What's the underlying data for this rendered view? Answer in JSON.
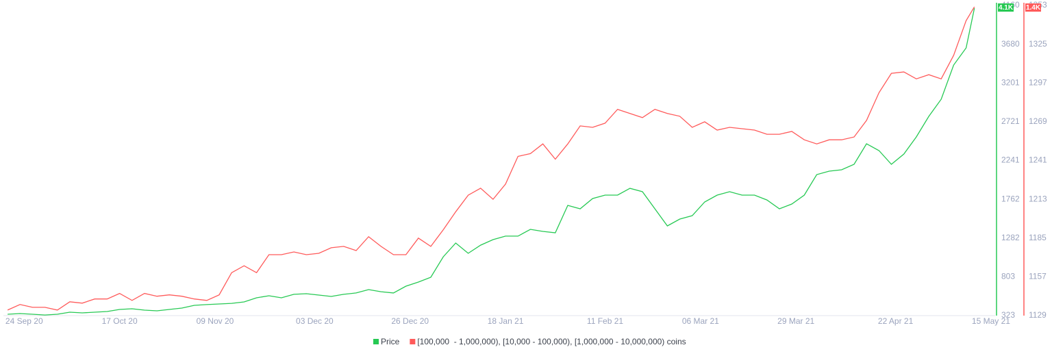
{
  "chart_data": {
    "type": "line",
    "x": [
      "2020-09-20",
      "2020-09-23",
      "2020-09-26",
      "2020-09-29",
      "2020-10-02",
      "2020-10-05",
      "2020-10-08",
      "2020-10-11",
      "2020-10-14",
      "2020-10-17",
      "2020-10-20",
      "2020-10-23",
      "2020-10-26",
      "2020-10-29",
      "2020-11-01",
      "2020-11-04",
      "2020-11-07",
      "2020-11-10",
      "2020-11-13",
      "2020-11-16",
      "2020-11-19",
      "2020-11-22",
      "2020-11-25",
      "2020-11-28",
      "2020-12-01",
      "2020-12-04",
      "2020-12-07",
      "2020-12-10",
      "2020-12-13",
      "2020-12-16",
      "2020-12-19",
      "2020-12-22",
      "2020-12-25",
      "2020-12-28",
      "2020-12-31",
      "2021-01-03",
      "2021-01-06",
      "2021-01-09",
      "2021-01-12",
      "2021-01-15",
      "2021-01-18",
      "2021-01-21",
      "2021-01-24",
      "2021-01-27",
      "2021-01-30",
      "2021-02-02",
      "2021-02-05",
      "2021-02-08",
      "2021-02-11",
      "2021-02-14",
      "2021-02-17",
      "2021-02-20",
      "2021-02-23",
      "2021-02-26",
      "2021-03-01",
      "2021-03-04",
      "2021-03-07",
      "2021-03-10",
      "2021-03-13",
      "2021-03-16",
      "2021-03-19",
      "2021-03-22",
      "2021-03-25",
      "2021-03-28",
      "2021-03-31",
      "2021-04-03",
      "2021-04-06",
      "2021-04-09",
      "2021-04-12",
      "2021-04-15",
      "2021-04-18",
      "2021-04-21",
      "2021-04-24",
      "2021-04-27",
      "2021-04-30",
      "2021-05-03",
      "2021-05-06",
      "2021-05-09",
      "2021-05-11"
    ],
    "xlim": [
      "2020-09-19",
      "2021-05-16"
    ],
    "xticks": [
      {
        "value": "2020-09-24",
        "label": "24 Sep 20"
      },
      {
        "value": "2020-10-17",
        "label": "17 Oct 20"
      },
      {
        "value": "2020-11-09",
        "label": "09 Nov 20"
      },
      {
        "value": "2020-12-03",
        "label": "03 Dec 20"
      },
      {
        "value": "2020-12-26",
        "label": "26 Dec 20"
      },
      {
        "value": "2021-01-18",
        "label": "18 Jan 21"
      },
      {
        "value": "2021-02-11",
        "label": "11 Feb 21"
      },
      {
        "value": "2021-03-06",
        "label": "06 Mar 21"
      },
      {
        "value": "2021-03-29",
        "label": "29 Mar 21"
      },
      {
        "value": "2021-04-22",
        "label": "22 Apr 21"
      },
      {
        "value": "2021-05-15",
        "label": "15 May 21"
      }
    ],
    "ylim": [
      323,
      4160
    ],
    "yticks": [
      323,
      803,
      1282,
      1762,
      2241,
      2721,
      3201,
      3680,
      4160
    ],
    "y2lim": [
      1129,
      1353
    ],
    "y2ticks": [
      1129,
      1157,
      1185,
      1213,
      1241,
      1269,
      1297,
      1325,
      1353
    ],
    "grid": false,
    "series": [
      {
        "name": "Price",
        "color": "#26c953",
        "badge": "4.1K",
        "values": [
          340,
          348,
          340,
          331,
          340,
          365,
          357,
          365,
          374,
          399,
          408,
          391,
          382,
          399,
          416,
          450,
          459,
          467,
          475,
          492,
          543,
          569,
          543,
          586,
          594,
          577,
          560,
          586,
          603,
          645,
          619,
          603,
          687,
          738,
          797,
          1051,
          1221,
          1094,
          1195,
          1263,
          1306,
          1306,
          1390,
          1365,
          1348,
          1687,
          1644,
          1771,
          1814,
          1814,
          1898,
          1856,
          1644,
          1433,
          1517,
          1560,
          1729,
          1814,
          1856,
          1814,
          1814,
          1754,
          1644,
          1704,
          1814,
          2068,
          2110,
          2127,
          2195,
          2449,
          2364,
          2195,
          2322,
          2534,
          2788,
          3000,
          3423,
          3635,
          4126
        ]
      },
      {
        "name": "[100,000  - 1,000,000), [10,000 - 100,000), [1,000,000 - 10,000,000) coins",
        "color": "#ff5a5a",
        "axis": "y2",
        "badge": "1.4K",
        "values": [
          1133,
          1137,
          1135,
          1135,
          1133,
          1139,
          1138,
          1141,
          1141,
          1145,
          1140,
          1145,
          1143,
          1144,
          1143,
          1141,
          1140,
          1144,
          1160,
          1165,
          1160,
          1173,
          1173,
          1175,
          1173,
          1174,
          1178,
          1179,
          1176,
          1186,
          1179,
          1173,
          1173,
          1185,
          1179,
          1191,
          1204,
          1216,
          1221,
          1213,
          1224,
          1244,
          1246,
          1253,
          1242,
          1253,
          1266,
          1265,
          1268,
          1278,
          1275,
          1272,
          1278,
          1275,
          1273,
          1265,
          1269,
          1263,
          1265,
          1264,
          1263,
          1260,
          1260,
          1262,
          1256,
          1253,
          1256,
          1256,
          1258,
          1270,
          1290,
          1304,
          1305,
          1300,
          1303,
          1300,
          1317,
          1342,
          1352
        ]
      }
    ]
  }
}
